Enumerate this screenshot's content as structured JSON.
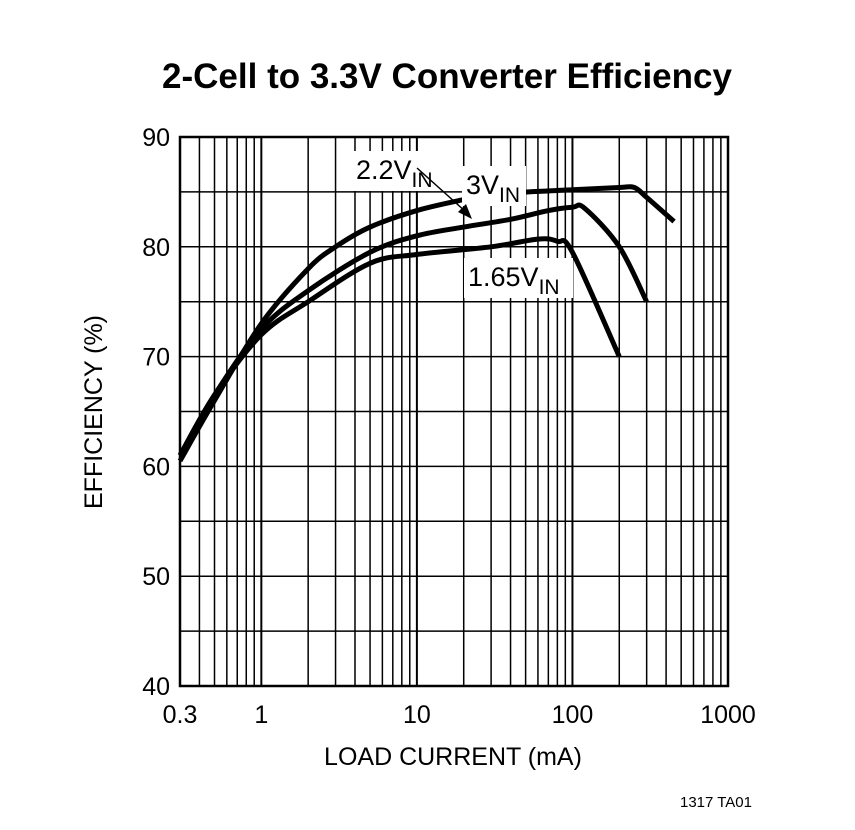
{
  "chart_data": {
    "type": "line",
    "title": "2-Cell to 3.3V Converter Efficiency",
    "xlabel": "LOAD CURRENT (mA)",
    "ylabel": "EFFICIENCY (%)",
    "x_scale": "log",
    "xlim": [
      0.3,
      1000
    ],
    "ylim": [
      40,
      90
    ],
    "x_ticks": [
      0.3,
      1,
      10,
      100,
      1000
    ],
    "x_tick_labels": [
      "0.3",
      "1",
      "10",
      "100",
      "1000"
    ],
    "y_ticks": [
      40,
      50,
      60,
      70,
      80,
      90
    ],
    "y_tick_labels": [
      "40",
      "50",
      "60",
      "70",
      "80",
      "90"
    ],
    "grid": true,
    "series": [
      {
        "name": "3V",
        "label_main": "3V",
        "label_sub": "IN",
        "x": [
          0.3,
          0.5,
          1,
          2,
          3,
          5,
          10,
          20,
          30,
          100,
          200,
          250,
          300,
          450
        ],
        "y": [
          60.5,
          66,
          73,
          78,
          80,
          81.8,
          83.3,
          84.3,
          84.8,
          85.2,
          85.4,
          85.4,
          84.5,
          82.3
        ]
      },
      {
        "name": "2.2V",
        "label_main": "2.2V",
        "label_sub": "IN",
        "x": [
          0.3,
          0.5,
          1,
          2,
          5,
          10,
          20,
          40,
          70,
          100,
          120,
          200,
          300
        ],
        "y": [
          61,
          66.5,
          72.5,
          76,
          79.5,
          81,
          81.8,
          82.5,
          83.3,
          83.6,
          83.5,
          80,
          75
        ]
      },
      {
        "name": "1.65V",
        "label_main": "1.65V",
        "label_sub": "IN",
        "x": [
          0.3,
          0.5,
          1,
          2,
          5,
          10,
          30,
          60,
          80,
          100,
          200
        ],
        "y": [
          61,
          66.5,
          72,
          75,
          78.5,
          79.3,
          80,
          80.7,
          80.5,
          79.5,
          70
        ]
      }
    ],
    "footnote": "1317 TA01"
  }
}
